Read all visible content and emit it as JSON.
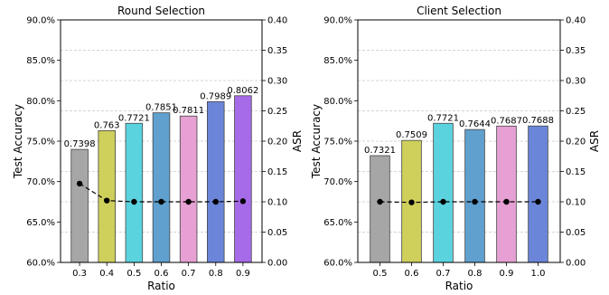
{
  "chart_data": [
    {
      "type": "bar",
      "title": "Round Selection",
      "xlabel": "Ratio",
      "ylabel": "Test Accuracy",
      "y2label": "ASR",
      "categories": [
        "0.3",
        "0.4",
        "0.5",
        "0.6",
        "0.7",
        "0.8",
        "0.9"
      ],
      "values": [
        0.7398,
        0.763,
        0.7721,
        0.7851,
        0.7811,
        0.7989,
        0.8062
      ],
      "value_labels": [
        "0.7398",
        "0.763",
        "0.7721",
        "0.7851",
        "0.7811",
        "0.7989",
        "0.8062"
      ],
      "asr": [
        0.13,
        0.102,
        0.1,
        0.1,
        0.1,
        0.1,
        0.101
      ],
      "bar_colors": [
        "#a6a6a6",
        "#cfcf5c",
        "#5bd3df",
        "#5fa0cf",
        "#e6a0d3",
        "#6b86d9",
        "#a66be8"
      ],
      "ylim": [
        0.6,
        0.9
      ],
      "y_ticks": [
        "60.0%",
        "65.0%",
        "70.0%",
        "75.0%",
        "80.0%",
        "85.0%",
        "90.0%"
      ],
      "y2lim": [
        0.0,
        0.4
      ],
      "y2_ticks": [
        "0.00",
        "0.05",
        "0.10",
        "0.15",
        "0.20",
        "0.25",
        "0.30",
        "0.35",
        "0.40"
      ],
      "grid": "dashed horizontal"
    },
    {
      "type": "bar",
      "title": "Client Selection",
      "xlabel": "Ratio",
      "ylabel": "Test Accuracy",
      "y2label": "ASR",
      "categories": [
        "0.5",
        "0.6",
        "0.7",
        "0.8",
        "0.9",
        "1.0"
      ],
      "values": [
        0.7321,
        0.7509,
        0.7721,
        0.7644,
        0.7687,
        0.7688
      ],
      "value_labels": [
        "0.7321",
        "0.7509",
        "0.7721",
        "0.7644",
        "0.7687",
        "0.7688"
      ],
      "asr": [
        0.1,
        0.099,
        0.1,
        0.1,
        0.1,
        0.1
      ],
      "bar_colors": [
        "#a6a6a6",
        "#cfcf5c",
        "#5bd3df",
        "#5fa0cf",
        "#e6a0d3",
        "#6b86d9"
      ],
      "ylim": [
        0.6,
        0.9
      ],
      "y_ticks": [
        "60.0%",
        "65.0%",
        "70.0%",
        "75.0%",
        "80.0%",
        "85.0%",
        "90.0%"
      ],
      "y2lim": [
        0.0,
        0.4
      ],
      "y2_ticks": [
        "0.00",
        "0.05",
        "0.10",
        "0.15",
        "0.20",
        "0.25",
        "0.30",
        "0.35",
        "0.40"
      ],
      "grid": "dashed horizontal"
    }
  ]
}
